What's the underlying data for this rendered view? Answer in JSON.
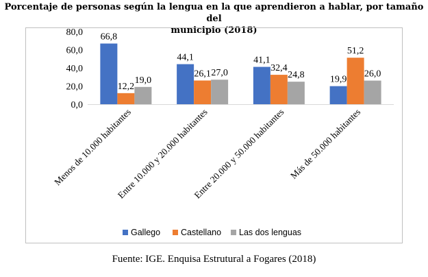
{
  "chart_data": {
    "type": "bar",
    "title": "Porcentaje de personas según la lengua en la que aprendieron a hablar, por tamaño del municipio (2018)",
    "title_lines": [
      "Porcentaje de personas según la lengua en la que aprendieron a hablar, por tamaño del",
      "municipio (2018)"
    ],
    "categories": [
      "Menos de 10.000 habitantes",
      "Entre 10.000 y 20.000 habitantes",
      "Entre 20.000 y 50.000 habitantes",
      "Más de 50.000 habitantes"
    ],
    "series": [
      {
        "name": "Gallego",
        "color": "#4472c4",
        "values": [
          66.8,
          44.1,
          41.1,
          19.9
        ],
        "labels": [
          "66,8",
          "44,1",
          "41,1",
          "19,9"
        ]
      },
      {
        "name": "Castellano",
        "color": "#ed7d31",
        "values": [
          12.2,
          26.1,
          32.4,
          51.2
        ],
        "labels": [
          "12,2",
          "26,1",
          "32,4",
          "51,2"
        ]
      },
      {
        "name": "Las dos lenguas",
        "color": "#a5a5a5",
        "values": [
          19.0,
          27.0,
          24.8,
          26.0
        ],
        "labels": [
          "19,0",
          "27,0",
          "24,8",
          "26,0"
        ]
      }
    ],
    "ylim": [
      0,
      80
    ],
    "yticks": [
      {
        "value": 0,
        "label": "0,0"
      },
      {
        "value": 20,
        "label": "20,0"
      },
      {
        "value": 40,
        "label": "40,0"
      },
      {
        "value": 60,
        "label": "60,0"
      },
      {
        "value": 80,
        "label": "80,0"
      }
    ],
    "xlabel": "",
    "ylabel": "",
    "grid": false,
    "legend": "bottom"
  },
  "source": "Fuente: IGE. Enquisa Estrutural a Fogares (2018)"
}
